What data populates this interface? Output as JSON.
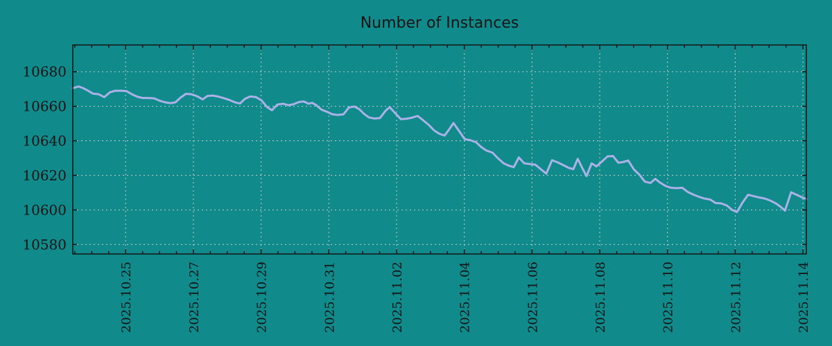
{
  "colors": {
    "background": "#108a8b",
    "line": "#abb2e8",
    "grid": "#c9cccc",
    "axis": "#141414",
    "text": "#141414"
  },
  "chart_data": {
    "type": "line",
    "title": "Number of Instances",
    "xlabel": "",
    "ylabel": "",
    "legend": "none",
    "grid": "dashed",
    "x_axis": {
      "unit": "date",
      "day0_date": "2025.10.23",
      "range_days": [
        0.44,
        22.1
      ],
      "tick_days": [
        2,
        4,
        6,
        8,
        10,
        12,
        14,
        16,
        18,
        20,
        22
      ],
      "tick_labels": [
        "2025.10.25",
        "2025.10.27",
        "2025.10.29",
        "2025.10.31",
        "2025.11.02",
        "2025.11.04",
        "2025.11.06",
        "2025.11.08",
        "2025.11.10",
        "2025.11.12",
        "2025.11.14"
      ],
      "minor_tick_step_days": 0.5,
      "label_rotation_deg": 90
    },
    "y_axis": {
      "range": [
        10574.5,
        10695.5
      ],
      "ticks": [
        10580,
        10600,
        10620,
        10640,
        10660,
        10680
      ]
    },
    "series": [
      {
        "name": "instances",
        "color": "#abb2e8",
        "points_day_value": [
          [
            0.44,
            10670.5
          ],
          [
            0.61,
            10671.5
          ],
          [
            0.75,
            10670.5
          ],
          [
            0.89,
            10669
          ],
          [
            1.04,
            10667.3
          ],
          [
            1.2,
            10667
          ],
          [
            1.37,
            10665.3
          ],
          [
            1.53,
            10668
          ],
          [
            1.69,
            10669
          ],
          [
            1.86,
            10669
          ],
          [
            2.02,
            10668.8
          ],
          [
            2.18,
            10667
          ],
          [
            2.35,
            10665.5
          ],
          [
            2.51,
            10664.8
          ],
          [
            2.68,
            10664.8
          ],
          [
            2.84,
            10664.6
          ],
          [
            3,
            10663.3
          ],
          [
            3.17,
            10662.3
          ],
          [
            3.33,
            10661.8
          ],
          [
            3.47,
            10662.3
          ],
          [
            3.62,
            10665
          ],
          [
            3.78,
            10667.2
          ],
          [
            3.94,
            10667
          ],
          [
            4.11,
            10665.8
          ],
          [
            4.27,
            10664
          ],
          [
            4.42,
            10666
          ],
          [
            4.58,
            10666.2
          ],
          [
            4.74,
            10665.6
          ],
          [
            4.91,
            10664.6
          ],
          [
            5.07,
            10663.6
          ],
          [
            5.23,
            10662.3
          ],
          [
            5.38,
            10661.6
          ],
          [
            5.52,
            10664.3
          ],
          [
            5.68,
            10665.7
          ],
          [
            5.85,
            10665.3
          ],
          [
            6.01,
            10663.5
          ],
          [
            6.18,
            10659.5
          ],
          [
            6.32,
            10657.7
          ],
          [
            6.48,
            10661
          ],
          [
            6.65,
            10661.5
          ],
          [
            6.81,
            10660.6
          ],
          [
            6.97,
            10661.3
          ],
          [
            7.12,
            10662.5
          ],
          [
            7.26,
            10662.8
          ],
          [
            7.4,
            10661.5
          ],
          [
            7.51,
            10662
          ],
          [
            7.63,
            10660.6
          ],
          [
            7.79,
            10658
          ],
          [
            7.96,
            10656.7
          ],
          [
            8.1,
            10655.4
          ],
          [
            8.26,
            10655
          ],
          [
            8.43,
            10655.3
          ],
          [
            8.59,
            10659.3
          ],
          [
            8.75,
            10659.9
          ],
          [
            8.9,
            10658.3
          ],
          [
            9.04,
            10655.6
          ],
          [
            9.18,
            10653.6
          ],
          [
            9.35,
            10652.9
          ],
          [
            9.51,
            10653.2
          ],
          [
            9.68,
            10657.5
          ],
          [
            9.8,
            10659.5
          ],
          [
            9.96,
            10656
          ],
          [
            10.13,
            10652.5
          ],
          [
            10.29,
            10652.8
          ],
          [
            10.45,
            10653.4
          ],
          [
            10.62,
            10654.4
          ],
          [
            10.78,
            10652
          ],
          [
            10.94,
            10649.4
          ],
          [
            11.11,
            10646
          ],
          [
            11.27,
            10644
          ],
          [
            11.42,
            10643.1
          ],
          [
            11.56,
            10646.8
          ],
          [
            11.68,
            10650.3
          ],
          [
            11.85,
            10645.6
          ],
          [
            12.01,
            10641
          ],
          [
            12.17,
            10640.4
          ],
          [
            12.34,
            10639.3
          ],
          [
            12.5,
            10636.4
          ],
          [
            12.66,
            10634.3
          ],
          [
            12.83,
            10633.2
          ],
          [
            12.99,
            10630
          ],
          [
            13.16,
            10627
          ],
          [
            13.32,
            10625.6
          ],
          [
            13.46,
            10624.8
          ],
          [
            13.61,
            10630.4
          ],
          [
            13.77,
            10627
          ],
          [
            13.93,
            10626.6
          ],
          [
            14.1,
            10626.2
          ],
          [
            14.26,
            10623.6
          ],
          [
            14.42,
            10621
          ],
          [
            14.59,
            10628.8
          ],
          [
            14.75,
            10627.6
          ],
          [
            14.92,
            10626
          ],
          [
            15.08,
            10624.4
          ],
          [
            15.22,
            10623.6
          ],
          [
            15.35,
            10629.6
          ],
          [
            15.49,
            10624
          ],
          [
            15.61,
            10619.6
          ],
          [
            15.76,
            10627
          ],
          [
            15.9,
            10625.2
          ],
          [
            16.06,
            10628
          ],
          [
            16.23,
            10631
          ],
          [
            16.39,
            10631.2
          ],
          [
            16.55,
            10627.3
          ],
          [
            16.7,
            10627.8
          ],
          [
            16.84,
            10628.6
          ],
          [
            17.01,
            10623.4
          ],
          [
            17.17,
            10620.4
          ],
          [
            17.33,
            10616.4
          ],
          [
            17.5,
            10615.6
          ],
          [
            17.64,
            10618
          ],
          [
            17.78,
            10615.8
          ],
          [
            17.95,
            10613.8
          ],
          [
            18.11,
            10612.8
          ],
          [
            18.27,
            10612.6
          ],
          [
            18.44,
            10612.8
          ],
          [
            18.6,
            10610.4
          ],
          [
            18.77,
            10608.8
          ],
          [
            18.93,
            10607.6
          ],
          [
            19.09,
            10606.6
          ],
          [
            19.26,
            10606
          ],
          [
            19.42,
            10604
          ],
          [
            19.58,
            10603.8
          ],
          [
            19.75,
            10602.6
          ],
          [
            19.91,
            10600
          ],
          [
            20.05,
            10598.8
          ],
          [
            20.22,
            10604.4
          ],
          [
            20.38,
            10608.8
          ],
          [
            20.55,
            10608
          ],
          [
            20.71,
            10607.2
          ],
          [
            20.87,
            10606.6
          ],
          [
            21.04,
            10605.4
          ],
          [
            21.2,
            10603.8
          ],
          [
            21.34,
            10601.8
          ],
          [
            21.47,
            10599.6
          ],
          [
            21.65,
            10610.2
          ],
          [
            21.81,
            10608.8
          ],
          [
            21.98,
            10607.2
          ],
          [
            22.1,
            10606.4
          ]
        ]
      }
    ]
  }
}
